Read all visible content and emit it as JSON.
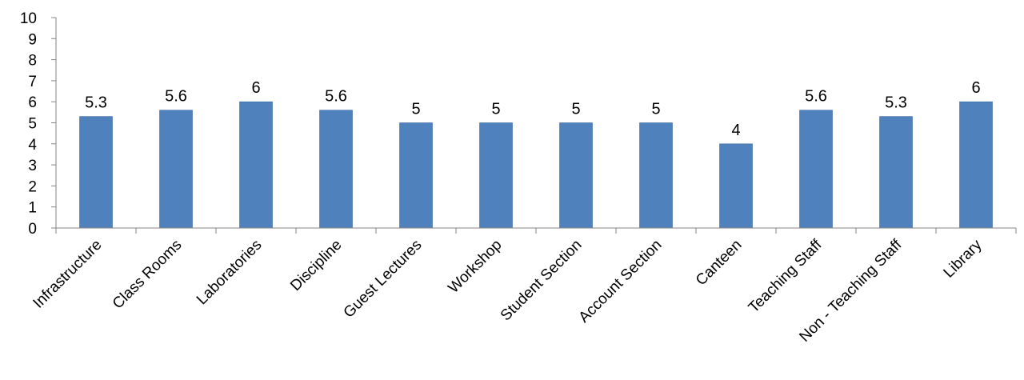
{
  "chart_data": {
    "type": "bar",
    "title": "",
    "xlabel": "",
    "ylabel": "",
    "categories": [
      "Infrastructure",
      "Class Rooms",
      "Laboratories",
      "Discipline",
      "Guest Lectures",
      "Workshop",
      "Student Section",
      "Account Section",
      "Canteen",
      "Teaching Staff",
      "Non - Teaching Staff",
      "Library"
    ],
    "values": [
      5.3,
      5.6,
      6,
      5.6,
      5,
      5,
      5,
      5,
      4,
      5.6,
      5.3,
      6
    ],
    "value_labels": [
      "5.3",
      "5.6",
      "6",
      "5.6",
      "5",
      "5",
      "5",
      "5",
      "4",
      "5.6",
      "5.3",
      "6"
    ],
    "ylim": [
      0,
      10
    ],
    "yticks": [
      "0",
      "1",
      "2",
      "3",
      "4",
      "5",
      "6",
      "7",
      "8",
      "9",
      "10"
    ],
    "grid": false,
    "legend": "none",
    "colors": {
      "bar": "#4f81bd",
      "bar_edge": "#3a6aa5",
      "axis": "#868686"
    }
  }
}
